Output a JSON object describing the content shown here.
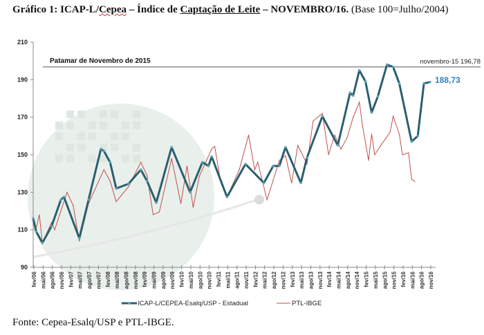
{
  "title": {
    "prefix": "Gráfico 1: ICAP-L/",
    "cepea": "Cepea",
    "dash1": " – ",
    "indice": "Índice de ",
    "captacao": "Captação de Leite",
    "dash2": " – NOVEMBRO/16.",
    "base": " (Base 100=Julho/2004)"
  },
  "source": "Fonte: Cepea-Esalq/USP e PTL-IBGE.",
  "colors": {
    "icap": "#2a5f6e",
    "ptl": "#c0504d",
    "last_label": "#2f7fc1"
  },
  "chart_data": {
    "type": "line",
    "ylim": [
      90,
      210
    ],
    "yticks": [
      90,
      110,
      130,
      150,
      170,
      190,
      210
    ],
    "xrange": [
      "2006-02",
      "2016-11"
    ],
    "xtick_labels": [
      "fev/06",
      "mai/06",
      "ago/06",
      "nov/06",
      "fev/07",
      "mai/07",
      "ago/07",
      "nov/07",
      "fev/08",
      "mai/08",
      "ago/08",
      "nov/08",
      "fev/09",
      "mai/09",
      "ago/09",
      "nov/09",
      "fev/10",
      "mai/10",
      "ago/10",
      "nov/10",
      "fev/11",
      "mai/11",
      "ago/11",
      "nov/11",
      "fev/12",
      "mai/12",
      "ago/12",
      "nov/12",
      "fev/13",
      "mai/13",
      "ago/13",
      "nov/13",
      "fev/14",
      "mai/14",
      "ago/14",
      "nov/14",
      "fev/15",
      "mai/15",
      "ago/15",
      "nov/15",
      "fev/16",
      "mai/16",
      "ago/16",
      "nov/16"
    ],
    "legend_position": "bottom",
    "grid": false,
    "series": [
      {
        "name": "ICAP-L/CEPEA-Esalq/USP - Estadual",
        "points": [
          [
            "2006-02",
            116
          ],
          [
            "2006-03",
            109
          ],
          [
            "2006-05",
            103
          ],
          [
            "2006-08",
            112
          ],
          [
            "2006-11",
            126
          ],
          [
            "2006-12",
            127.5
          ],
          [
            "2007-05",
            105.5
          ],
          [
            "2007-08",
            126
          ],
          [
            "2007-12",
            153
          ],
          [
            "2008-01",
            152
          ],
          [
            "2008-03",
            146
          ],
          [
            "2008-05",
            132
          ],
          [
            "2008-09",
            134.5
          ],
          [
            "2009-01",
            142
          ],
          [
            "2009-03",
            136
          ],
          [
            "2009-06",
            124.5
          ],
          [
            "2009-11",
            154
          ],
          [
            "2010-05",
            130
          ],
          [
            "2010-09",
            146
          ],
          [
            "2010-11",
            144
          ],
          [
            "2010-12",
            149
          ],
          [
            "2011-05",
            127.5
          ],
          [
            "2011-11",
            145
          ],
          [
            "2012-05",
            135
          ],
          [
            "2012-08",
            144
          ],
          [
            "2012-10",
            144
          ],
          [
            "2012-12",
            154
          ],
          [
            "2013-05",
            135
          ],
          [
            "2013-07",
            148.5
          ],
          [
            "2013-12",
            170.5
          ],
          [
            "2014-05",
            155
          ],
          [
            "2014-09",
            183
          ],
          [
            "2014-10",
            181.5
          ],
          [
            "2014-12",
            195
          ],
          [
            "2015-02",
            189
          ],
          [
            "2015-04",
            172.5
          ],
          [
            "2015-06",
            181
          ],
          [
            "2015-09",
            198
          ],
          [
            "2015-11",
            196.78
          ],
          [
            "2016-01",
            188
          ],
          [
            "2016-05",
            157
          ],
          [
            "2016-07",
            160
          ],
          [
            "2016-09",
            188
          ],
          [
            "2016-11",
            188.73
          ]
        ]
      },
      {
        "name": "PTL-IBGE",
        "points": [
          [
            "2006-02",
            116
          ],
          [
            "2006-03",
            111
          ],
          [
            "2006-04",
            118
          ],
          [
            "2006-05",
            103
          ],
          [
            "2006-08",
            114
          ],
          [
            "2006-09",
            110
          ],
          [
            "2007-01",
            130
          ],
          [
            "2007-03",
            123
          ],
          [
            "2007-05",
            104
          ],
          [
            "2007-08",
            124
          ],
          [
            "2008-01",
            142
          ],
          [
            "2008-03",
            136
          ],
          [
            "2008-05",
            125
          ],
          [
            "2008-09",
            133
          ],
          [
            "2009-01",
            146
          ],
          [
            "2009-03",
            139
          ],
          [
            "2009-05",
            118
          ],
          [
            "2009-07",
            119.5
          ],
          [
            "2009-11",
            148
          ],
          [
            "2010-02",
            124
          ],
          [
            "2010-04",
            144
          ],
          [
            "2010-06",
            122
          ],
          [
            "2010-08",
            138.5
          ],
          [
            "2010-12",
            153
          ],
          [
            "2011-01",
            154.5
          ],
          [
            "2011-03",
            135
          ],
          [
            "2011-05",
            127.5
          ],
          [
            "2011-09",
            142
          ],
          [
            "2011-12",
            160.5
          ],
          [
            "2012-02",
            142
          ],
          [
            "2012-03",
            146
          ],
          [
            "2012-06",
            126
          ],
          [
            "2012-10",
            147
          ],
          [
            "2012-12",
            149.5
          ],
          [
            "2013-02",
            135
          ],
          [
            "2013-04",
            155
          ],
          [
            "2013-07",
            145
          ],
          [
            "2013-09",
            168
          ],
          [
            "2013-12",
            172
          ],
          [
            "2014-02",
            150
          ],
          [
            "2014-04",
            160.5
          ],
          [
            "2014-06",
            153
          ],
          [
            "2014-08",
            159
          ],
          [
            "2014-10",
            170
          ],
          [
            "2014-12",
            178
          ],
          [
            "2015-01",
            166
          ],
          [
            "2015-03",
            147
          ],
          [
            "2015-04",
            161
          ],
          [
            "2015-05",
            150
          ],
          [
            "2015-07",
            155
          ],
          [
            "2015-10",
            162
          ],
          [
            "2015-11",
            170.5
          ],
          [
            "2016-01",
            161
          ],
          [
            "2016-02",
            150
          ],
          [
            "2016-04",
            151
          ],
          [
            "2016-05",
            137
          ],
          [
            "2016-06",
            135.7
          ]
        ]
      }
    ],
    "annotations": {
      "reference_label": "Patamar de Novembro de 2015",
      "reference_value": 196.78,
      "reference_point_label": "novembro-15 196,78",
      "last_value_label": "188,73"
    }
  }
}
